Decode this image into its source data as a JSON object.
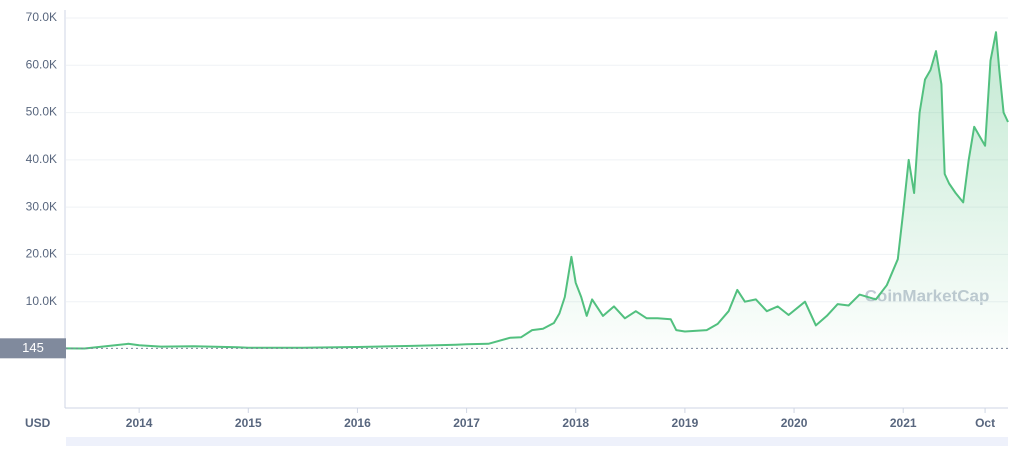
{
  "chart_data": {
    "type": "area",
    "color": "#52c07f",
    "currency": "USD",
    "watermark": "CoinMarketCap",
    "reference_line": {
      "value": 145,
      "label": "145"
    },
    "xlim": [
      2013.33,
      2021.96
    ],
    "xticks": [
      2014,
      2015,
      2016,
      2017,
      2018,
      2019,
      2020,
      2021,
      {
        "value": 2021.75,
        "label": "Oct"
      }
    ],
    "ylim": [
      0,
      70000
    ],
    "yticks": [
      {
        "value": 10000,
        "label": "10.0K"
      },
      {
        "value": 20000,
        "label": "20.0K"
      },
      {
        "value": 30000,
        "label": "30.0K"
      },
      {
        "value": 40000,
        "label": "40.0K"
      },
      {
        "value": 50000,
        "label": "50.0K"
      },
      {
        "value": 60000,
        "label": "60.0K"
      },
      {
        "value": 70000,
        "label": "70.0K"
      }
    ],
    "grid": true,
    "x": [
      2013.33,
      2013.5,
      2013.9,
      2014.0,
      2014.2,
      2014.5,
      2014.9,
      2015.0,
      2015.5,
      2015.9,
      2016.0,
      2016.5,
      2016.9,
      2017.0,
      2017.2,
      2017.4,
      2017.5,
      2017.6,
      2017.7,
      2017.8,
      2017.85,
      2017.9,
      2017.96,
      2018.0,
      2018.05,
      2018.1,
      2018.15,
      2018.25,
      2018.35,
      2018.45,
      2018.55,
      2018.65,
      2018.75,
      2018.87,
      2018.92,
      2019.0,
      2019.2,
      2019.3,
      2019.4,
      2019.48,
      2019.55,
      2019.65,
      2019.75,
      2019.85,
      2019.95,
      2020.1,
      2020.2,
      2020.3,
      2020.4,
      2020.5,
      2020.6,
      2020.75,
      2020.85,
      2020.95,
      2021.0,
      2021.05,
      2021.1,
      2021.15,
      2021.2,
      2021.25,
      2021.3,
      2021.35,
      2021.38,
      2021.42,
      2021.48,
      2021.55,
      2021.6,
      2021.65,
      2021.7,
      2021.75,
      2021.8,
      2021.85,
      2021.88,
      2021.92,
      2021.96
    ],
    "values": [
      120,
      100,
      1100,
      800,
      500,
      600,
      350,
      280,
      250,
      400,
      430,
      650,
      900,
      1000,
      1100,
      2400,
      2500,
      4000,
      4300,
      5500,
      7500,
      11000,
      19500,
      14000,
      11000,
      7000,
      10500,
      7000,
      9000,
      6500,
      8000,
      6500,
      6500,
      6300,
      4000,
      3700,
      4000,
      5300,
      8000,
      12500,
      10000,
      10500,
      8000,
      9000,
      7200,
      10000,
      5000,
      7000,
      9500,
      9200,
      11500,
      10500,
      13500,
      19000,
      29000,
      40000,
      33000,
      50000,
      57000,
      59000,
      63000,
      56000,
      37000,
      35000,
      33000,
      31000,
      40000,
      47000,
      45000,
      43000,
      61000,
      67000,
      59000,
      50000,
      48000
    ]
  }
}
